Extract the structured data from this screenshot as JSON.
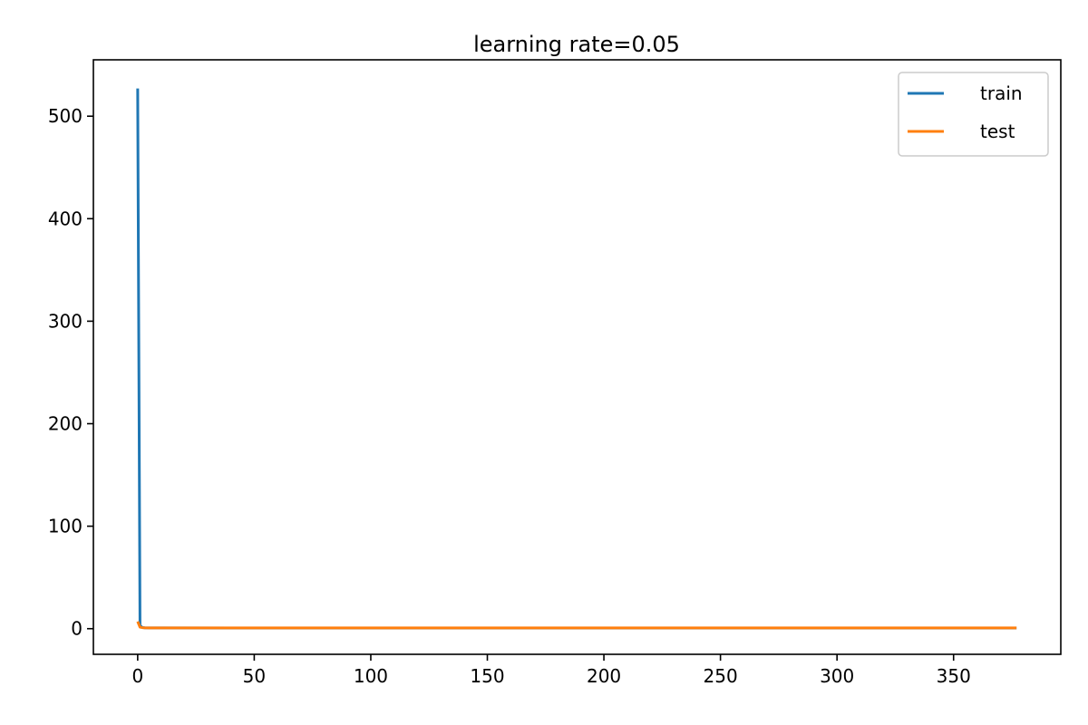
{
  "chart_data": {
    "type": "line",
    "title": "learning rate=0.05",
    "xlabel": "",
    "ylabel": "",
    "xlim": [
      -19,
      396
    ],
    "ylim": [
      -25,
      555
    ],
    "x_ticks": [
      0,
      50,
      100,
      150,
      200,
      250,
      300,
      350
    ],
    "y_ticks": [
      0,
      100,
      200,
      300,
      400,
      500
    ],
    "grid": false,
    "legend_position": "top-right",
    "series": [
      {
        "name": "train",
        "color": "#1f77b4",
        "points": [
          [
            0,
            527
          ],
          [
            1,
            3.0
          ],
          [
            2,
            1.2
          ],
          [
            3,
            0.9
          ],
          [
            5,
            0.8
          ],
          [
            10,
            0.7
          ],
          [
            50,
            0.6
          ],
          [
            100,
            0.6
          ],
          [
            150,
            0.6
          ],
          [
            200,
            0.6
          ],
          [
            250,
            0.6
          ],
          [
            300,
            0.6
          ],
          [
            350,
            0.6
          ],
          [
            377,
            0.6
          ]
        ]
      },
      {
        "name": "test",
        "color": "#ff7f0e",
        "points": [
          [
            0,
            7
          ],
          [
            1,
            1.5
          ],
          [
            2,
            1.0
          ],
          [
            3,
            0.9
          ],
          [
            5,
            0.8
          ],
          [
            10,
            0.8
          ],
          [
            50,
            0.8
          ],
          [
            100,
            0.8
          ],
          [
            150,
            0.8
          ],
          [
            200,
            0.8
          ],
          [
            250,
            0.8
          ],
          [
            300,
            0.8
          ],
          [
            350,
            0.8
          ],
          [
            377,
            0.8
          ]
        ]
      }
    ]
  }
}
